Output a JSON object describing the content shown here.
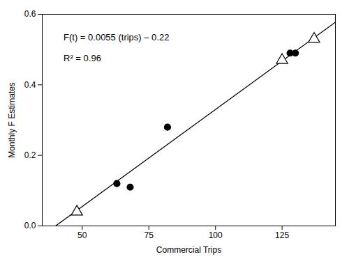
{
  "chart_data": {
    "type": "scatter",
    "xlabel": "Commercial Trips",
    "ylabel": "Monthly F Estimates",
    "xlim": [
      35,
      145
    ],
    "ylim": [
      0.0,
      0.6
    ],
    "xticks": [
      50,
      75,
      100,
      125
    ],
    "yticks": [
      {
        "value": 0.0,
        "label": "0.0"
      },
      0.2,
      0.4,
      0.6
    ],
    "series": [
      {
        "type": "line",
        "color": "#000000",
        "x": [
          40,
          145
        ],
        "values": [
          0,
          0.5775
        ]
      },
      {
        "type": "scatter",
        "marker": "triangle-open",
        "color": "#000000",
        "x": [
          48,
          125,
          137
        ],
        "values": [
          0.04,
          0.47,
          0.53
        ]
      },
      {
        "type": "scatter",
        "marker": "circle",
        "color": "#000000",
        "x": [
          63,
          68,
          82,
          128,
          130
        ],
        "values": [
          0.12,
          0.11,
          0.28,
          0.49,
          0.49
        ]
      }
    ],
    "annotations": [
      {
        "text": "F(t) = 0.0055 (trips) – 0.22",
        "x": 43,
        "y": 0.545
      },
      {
        "text": "R² = 0.96",
        "x": 43,
        "y": 0.485
      }
    ]
  }
}
